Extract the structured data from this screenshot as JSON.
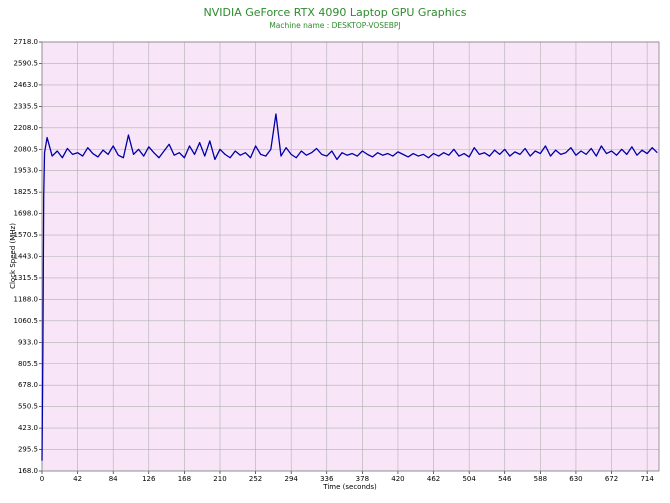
{
  "chart_data": {
    "type": "line",
    "title": "NVIDIA GeForce RTX 4090 Laptop GPU Graphics",
    "subtitle": "Machine name : DESKTOP-VOSEBPJ",
    "xlabel": "Time (seconds)",
    "ylabel": "Clock Speed (MHz)",
    "xlim": [
      0,
      728
    ],
    "xticks": [
      0,
      42,
      84,
      126,
      168,
      210,
      252,
      294,
      336,
      378,
      420,
      462,
      504,
      546,
      588,
      630,
      672,
      714
    ],
    "ylim": [
      168,
      2718
    ],
    "yticks": [
      {
        "value": 168,
        "label": "168.0"
      },
      295.5,
      {
        "value": 423,
        "label": "423.0"
      },
      550.5,
      {
        "value": 678,
        "label": "678.0"
      },
      805.5,
      {
        "value": 933,
        "label": "933.0"
      },
      1060.5,
      {
        "value": 1188,
        "label": "1188.0"
      },
      1315.5,
      {
        "value": 1443,
        "label": "1443.0"
      },
      1570.5,
      {
        "value": 1698,
        "label": "1698.0"
      },
      1825.5,
      {
        "value": 1953,
        "label": "1953.0"
      },
      2080.5,
      {
        "value": 2208,
        "label": "2208.0"
      },
      2335.5,
      {
        "value": 2463,
        "label": "2463.0"
      },
      2590.5,
      {
        "value": 2718,
        "label": "2718.0"
      }
    ],
    "grid": true,
    "x": [
      0,
      1,
      2,
      3,
      6,
      12,
      18,
      24,
      30,
      36,
      42,
      48,
      54,
      60,
      66,
      72,
      78,
      84,
      90,
      96,
      102,
      108,
      114,
      120,
      126,
      132,
      138,
      144,
      150,
      156,
      162,
      168,
      174,
      180,
      186,
      192,
      198,
      204,
      210,
      216,
      222,
      228,
      234,
      240,
      246,
      252,
      258,
      264,
      270,
      276,
      282,
      288,
      294,
      300,
      306,
      312,
      318,
      324,
      330,
      336,
      342,
      348,
      354,
      360,
      366,
      372,
      378,
      384,
      390,
      396,
      402,
      408,
      414,
      420,
      426,
      432,
      438,
      444,
      450,
      456,
      462,
      468,
      474,
      480,
      486,
      492,
      498,
      504,
      510,
      516,
      522,
      528,
      534,
      540,
      546,
      552,
      558,
      564,
      570,
      576,
      582,
      588,
      594,
      600,
      606,
      612,
      618,
      624,
      630,
      636,
      642,
      648,
      654,
      660,
      666,
      672,
      678,
      684,
      690,
      696,
      702,
      708,
      714,
      720,
      726
    ],
    "series": [
      {
        "name": "Clock Speed",
        "color": "#0000a8",
        "values": [
          230,
          850,
          1800,
          2060,
          2150,
          2040,
          2070,
          2030,
          2085,
          2050,
          2060,
          2040,
          2090,
          2055,
          2035,
          2075,
          2050,
          2100,
          2045,
          2030,
          2165,
          2050,
          2080,
          2040,
          2095,
          2060,
          2030,
          2070,
          2110,
          2045,
          2060,
          2030,
          2100,
          2050,
          2120,
          2040,
          2130,
          2020,
          2080,
          2050,
          2030,
          2070,
          2045,
          2060,
          2030,
          2100,
          2050,
          2040,
          2080,
          2290,
          2040,
          2090,
          2050,
          2030,
          2070,
          2045,
          2060,
          2085,
          2050,
          2040,
          2070,
          2020,
          2060,
          2045,
          2055,
          2040,
          2070,
          2050,
          2035,
          2060,
          2045,
          2055,
          2040,
          2065,
          2050,
          2035,
          2055,
          2040,
          2050,
          2030,
          2055,
          2040,
          2060,
          2045,
          2080,
          2040,
          2055,
          2035,
          2090,
          2050,
          2060,
          2040,
          2075,
          2050,
          2080,
          2040,
          2065,
          2050,
          2085,
          2040,
          2070,
          2055,
          2100,
          2040,
          2075,
          2050,
          2060,
          2090,
          2045,
          2070,
          2050,
          2085,
          2040,
          2100,
          2055,
          2070,
          2045,
          2080,
          2050,
          2095,
          2045,
          2075,
          2055,
          2090,
          2060
        ]
      }
    ]
  }
}
